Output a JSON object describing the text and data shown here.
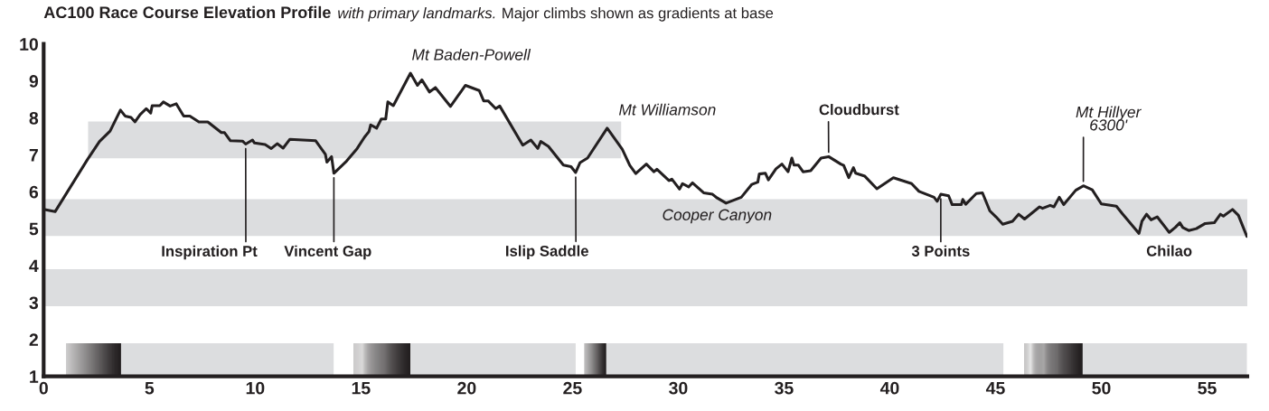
{
  "chart_data": {
    "type": "line",
    "title": "AC100 Race Course Elevation Profile",
    "subtitle": "with primary landmarks.",
    "annotations": [
      "Major climbs shown as gradients at base",
      {
        "text": "Inspiration Pt",
        "x": 9.55,
        "y": 7.29
      },
      {
        "text": "Vincent Gap",
        "x": 13.72,
        "y": 6.5
      },
      {
        "text": "Islip Saddle",
        "x": 25.15,
        "y": 6.52
      },
      {
        "text": "Mt Williamson",
        "x": 26.64,
        "y": 7.72
      },
      {
        "text": "Mt Baden-Powell",
        "x": 17.34,
        "y": 9.21
      },
      {
        "text": "Cooper Canyon",
        "x": 32.26,
        "y": 5.69
      },
      {
        "text": "Cloudburst",
        "x": 37.11,
        "y": 6.95
      },
      {
        "text": "3 Points",
        "x": 42.41,
        "y": 5.93
      },
      {
        "text": "Mt Hillyer\n6300'",
        "x": 49.15,
        "y": 6.16
      },
      {
        "text": "Chilao",
        "x": 53.21,
        "y": 4.9
      }
    ],
    "xlim": [
      0,
      56.9
    ],
    "ylim": [
      1,
      10
    ],
    "xticks": [
      0,
      5,
      10,
      15,
      20,
      25,
      30,
      35,
      40,
      45,
      50,
      55
    ],
    "yticks": [
      1,
      2,
      3,
      4,
      5,
      6,
      7,
      8,
      9,
      10
    ],
    "bands": [
      {
        "axis": "y",
        "from": 2.9,
        "to": 3.9,
        "color": "#dcdddf"
      },
      {
        "axis": "y",
        "from": 4.8,
        "to": 5.8,
        "color": "#dcdddf"
      },
      {
        "axis": "x",
        "from": 2.1,
        "to": 27.3,
        "color": "#dcdddf"
      },
      {
        "axis": "x",
        "from": 1.07,
        "to": 3.66,
        "color": "#231f20"
      },
      {
        "axis": "x",
        "from": 3.66,
        "to": 13.71,
        "color": "#dcdddf"
      },
      {
        "axis": "x",
        "from": 14.67,
        "to": 17.34,
        "color": "#231f20"
      },
      {
        "axis": "x",
        "from": 17.34,
        "to": 25.15,
        "color": "#dcdddf"
      },
      {
        "axis": "x",
        "from": 25.57,
        "to": 26.6,
        "color": "#231f20"
      },
      {
        "axis": "x",
        "from": 26.6,
        "to": 45.37,
        "color": "#dcdddf"
      },
      {
        "axis": "x",
        "from": 46.37,
        "to": 49.12,
        "color": "#231f20"
      },
      {
        "axis": "x",
        "from": 49.12,
        "to": 56.88,
        "color": "#dcdddf"
      }
    ],
    "series": [
      {
        "color": "#231f20",
        "x": [
          0,
          0.54,
          2.07,
          2.64,
          3.14,
          3.63,
          3.85,
          4.13,
          4.32,
          4.56,
          4.85,
          5.06,
          5.13,
          5.49,
          5.66,
          5.98,
          6.27,
          6.62,
          6.91,
          7.34,
          7.76,
          8.4,
          8.55,
          8.83,
          9.4,
          9.55,
          9.87,
          9.97,
          10.47,
          10.76,
          11.04,
          11.32,
          11.64,
          12.86,
          13.32,
          13.39,
          13.61,
          13.72,
          14.32,
          14.82,
          15.17,
          15.38,
          15.46,
          15.74,
          15.96,
          16.17,
          16.27,
          16.53,
          17.34,
          17.67,
          17.88,
          18.24,
          18.52,
          19.23,
          19.94,
          20.59,
          20.8,
          21.01,
          21.37,
          21.56,
          22.65,
          23.03,
          23.36,
          23.5,
          23.86,
          24.57,
          24.93,
          25.15,
          25.36,
          25.71,
          26.64,
          27.35,
          27.71,
          27.99,
          28.49,
          28.85,
          28.99,
          29.56,
          29.7,
          30.06,
          30.2,
          30.49,
          30.67,
          31.2,
          31.62,
          31.84,
          32.26,
          32.98,
          33.48,
          33.76,
          33.83,
          34.12,
          34.26,
          34.62,
          34.9,
          35.19,
          35.37,
          35.47,
          35.68,
          35.9,
          36.26,
          36.75,
          37.11,
          37.68,
          37.82,
          38.06,
          38.28,
          38.39,
          38.82,
          39.39,
          40.17,
          41.03,
          41.38,
          42.09,
          42.24,
          42.41,
          42.78,
          42.95,
          43.38,
          43.45,
          43.59,
          44.09,
          44.38,
          44.73,
          45.02,
          45.34,
          45.8,
          46.09,
          46.37,
          47.08,
          47.22,
          47.58,
          47.76,
          48.01,
          48.22,
          48.79,
          49.15,
          49.57,
          50.0,
          50.71,
          51.0,
          51.78,
          51.92,
          52.14,
          52.35,
          52.64,
          53.21,
          53.49,
          53.71,
          53.85,
          54.13,
          54.49,
          54.91,
          55.34,
          55.63,
          55.77,
          56.2,
          56.48,
          56.88
        ],
        "values": [
          5.52,
          5.46,
          6.87,
          7.36,
          7.64,
          8.21,
          8.05,
          8.01,
          7.89,
          8.09,
          8.25,
          8.13,
          8.33,
          8.33,
          8.43,
          8.32,
          8.38,
          8.05,
          8.05,
          7.89,
          7.89,
          7.6,
          7.6,
          7.38,
          7.37,
          7.29,
          7.4,
          7.32,
          7.28,
          7.17,
          7.3,
          7.18,
          7.42,
          7.38,
          7.01,
          6.8,
          6.95,
          6.5,
          6.83,
          7.17,
          7.48,
          7.63,
          7.81,
          7.72,
          7.97,
          7.97,
          8.43,
          8.33,
          9.21,
          8.88,
          9.03,
          8.7,
          8.82,
          8.31,
          8.88,
          8.74,
          8.46,
          8.46,
          8.25,
          8.32,
          7.26,
          7.4,
          7.17,
          7.36,
          7.23,
          6.72,
          6.68,
          6.52,
          6.79,
          6.91,
          7.72,
          7.15,
          6.71,
          6.49,
          6.75,
          6.54,
          6.61,
          6.3,
          6.34,
          6.07,
          6.22,
          6.13,
          6.24,
          5.97,
          5.93,
          5.83,
          5.69,
          5.85,
          6.2,
          6.26,
          6.48,
          6.5,
          6.32,
          6.62,
          6.75,
          6.54,
          6.91,
          6.72,
          6.72,
          6.54,
          6.57,
          6.91,
          6.95,
          6.75,
          6.71,
          6.38,
          6.65,
          6.5,
          6.42,
          6.08,
          6.38,
          6.22,
          6.01,
          5.85,
          5.74,
          5.93,
          5.89,
          5.65,
          5.65,
          5.79,
          5.66,
          5.95,
          5.97,
          5.48,
          5.32,
          5.12,
          5.2,
          5.39,
          5.26,
          5.59,
          5.55,
          5.63,
          5.59,
          5.85,
          5.65,
          6.04,
          6.16,
          6.05,
          5.67,
          5.61,
          5.4,
          4.87,
          5.2,
          5.39,
          5.24,
          5.32,
          4.9,
          5.03,
          5.16,
          5.03,
          4.95,
          5.0,
          5.14,
          5.16,
          5.39,
          5.34,
          5.52,
          5.36,
          4.79
        ]
      }
    ]
  }
}
